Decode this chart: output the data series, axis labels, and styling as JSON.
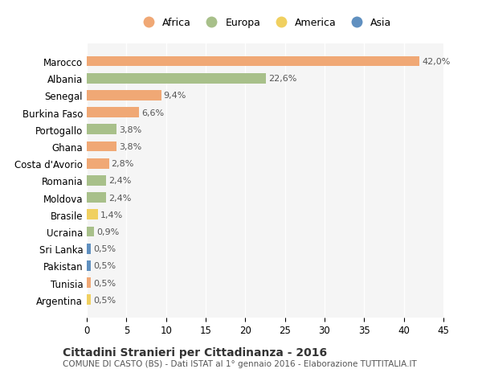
{
  "countries": [
    "Marocco",
    "Albania",
    "Senegal",
    "Burkina Faso",
    "Portogallo",
    "Ghana",
    "Costa d'Avorio",
    "Romania",
    "Moldova",
    "Brasile",
    "Ucraina",
    "Sri Lanka",
    "Pakistan",
    "Tunisia",
    "Argentina"
  ],
  "values": [
    42.0,
    22.6,
    9.4,
    6.6,
    3.8,
    3.8,
    2.8,
    2.4,
    2.4,
    1.4,
    0.9,
    0.5,
    0.5,
    0.5,
    0.5
  ],
  "labels": [
    "42,0%",
    "22,6%",
    "9,4%",
    "6,6%",
    "3,8%",
    "3,8%",
    "2,8%",
    "2,4%",
    "2,4%",
    "1,4%",
    "0,9%",
    "0,5%",
    "0,5%",
    "0,5%",
    "0,5%"
  ],
  "continents": [
    "Africa",
    "Europa",
    "Africa",
    "Africa",
    "Europa",
    "Africa",
    "Africa",
    "Europa",
    "Europa",
    "America",
    "Europa",
    "Asia",
    "Asia",
    "Africa",
    "America"
  ],
  "colors": {
    "Africa": "#F0A875",
    "Europa": "#A8C08A",
    "America": "#F0D060",
    "Asia": "#6090C0"
  },
  "legend_order": [
    "Africa",
    "Europa",
    "America",
    "Asia"
  ],
  "title": "Cittadini Stranieri per Cittadinanza - 2016",
  "subtitle": "COMUNE DI CASTO (BS) - Dati ISTAT al 1° gennaio 2016 - Elaborazione TUTTITALIA.IT",
  "xlim": [
    0,
    45
  ],
  "xticks": [
    0,
    5,
    10,
    15,
    20,
    25,
    30,
    35,
    40,
    45
  ],
  "bg_color": "#ffffff",
  "plot_bg_color": "#f5f5f5"
}
